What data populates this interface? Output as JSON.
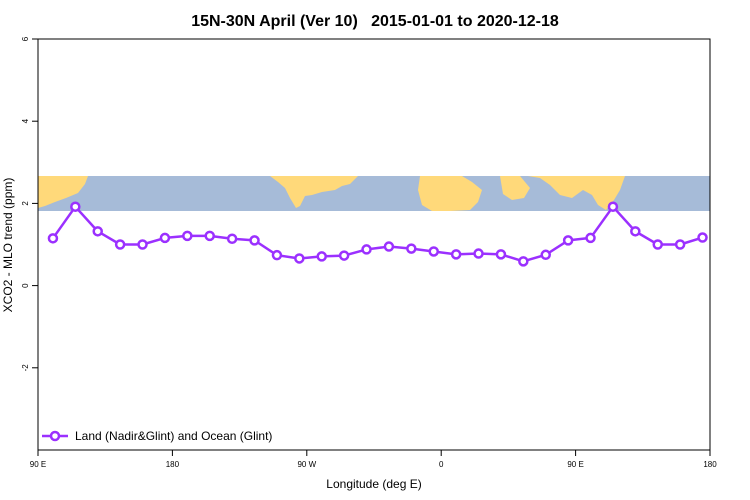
{
  "chart_data": {
    "type": "line",
    "title": "15N-30N April (Ver 10)   2015-01-01 to 2020-12-18",
    "xlabel": "Longitude (deg E)",
    "ylabel": "XCO2 - MLO trend (ppm)",
    "xlim": [
      90,
      540
    ],
    "ylim": [
      -4,
      6
    ],
    "x_ticks": [
      {
        "value": 90,
        "label": "90 E"
      },
      {
        "value": 180,
        "label": "180"
      },
      {
        "value": 270,
        "label": "90 W"
      },
      {
        "value": 360,
        "label": "0"
      },
      {
        "value": 450,
        "label": "90 E"
      },
      {
        "value": 540,
        "label": "180"
      }
    ],
    "y_ticks": [
      {
        "value": 6,
        "label": "6"
      },
      {
        "value": 4,
        "label": "4"
      },
      {
        "value": 2,
        "label": "2"
      },
      {
        "value": 0,
        "label": "0"
      },
      {
        "value": -2,
        "label": "-2"
      }
    ],
    "grid": false,
    "legend_position": "bottom-left",
    "map_strip": {
      "ymin": 1.85,
      "ymax": 2.65,
      "land_color": "#ffd97a",
      "ocean_color": "#a6bbd8"
    },
    "series": [
      {
        "name": "Land (Nadir&Glint) and Ocean (Glint)",
        "color": "#9b30ff",
        "x": [
          100,
          115,
          130,
          145,
          160,
          175,
          190,
          205,
          220,
          235,
          250,
          265,
          280,
          295,
          310,
          325,
          340,
          355,
          370,
          385,
          400,
          415,
          430,
          445,
          460,
          475,
          490,
          505,
          520,
          535
        ],
        "values": [
          1.15,
          1.92,
          1.32,
          1.0,
          1.0,
          1.16,
          1.21,
          1.21,
          1.14,
          1.1,
          0.74,
          0.66,
          0.71,
          0.73,
          0.88,
          0.95,
          0.9,
          0.83,
          0.76,
          0.78,
          0.76,
          0.59,
          0.75,
          1.1,
          1.16,
          1.92,
          1.32,
          1.0,
          1.0,
          1.17
        ]
      }
    ]
  }
}
